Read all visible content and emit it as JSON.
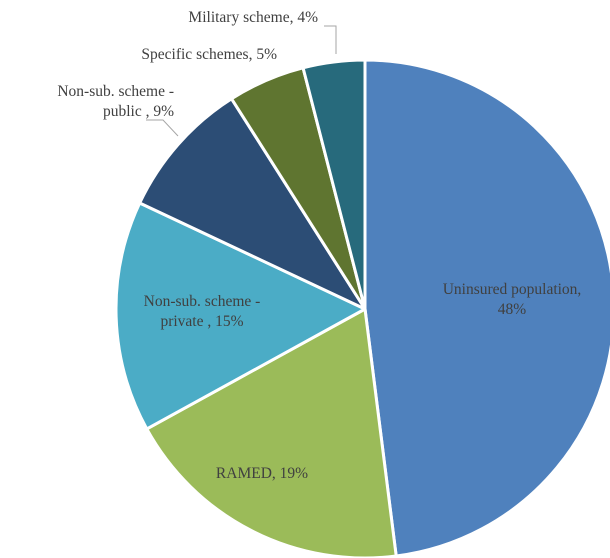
{
  "chart_data": {
    "type": "pie",
    "title": "",
    "start_angle_deg": 0,
    "direction": "clockwise",
    "slices": [
      {
        "name": "Uninsured population",
        "value": 48,
        "label_lines": [
          "Uninsured population,",
          "48%"
        ],
        "color": "#4F81BD",
        "label_position": "inside"
      },
      {
        "name": "RAMED",
        "value": 19,
        "label_lines": [
          "RAMED, 19%"
        ],
        "color": "#9BBB59",
        "label_position": "inside"
      },
      {
        "name": "Non-sub. scheme - private",
        "value": 15,
        "label_lines": [
          "Non-sub. scheme -",
          "private , 15%"
        ],
        "color": "#4BACC6",
        "label_position": "inside"
      },
      {
        "name": "Non-sub. scheme - public",
        "value": 9,
        "label_lines": [
          "Non-sub. scheme -",
          "public , 9%"
        ],
        "color": "#2C4D75",
        "label_position": "outside"
      },
      {
        "name": "Specific schemes",
        "value": 5,
        "label_lines": [
          "Specific schemes, 5%"
        ],
        "color": "#5F7530",
        "label_position": "outside"
      },
      {
        "name": "Military scheme",
        "value": 4,
        "label_lines": [
          "Military scheme, 4%"
        ],
        "color": "#276A7C",
        "label_position": "outside"
      }
    ]
  }
}
